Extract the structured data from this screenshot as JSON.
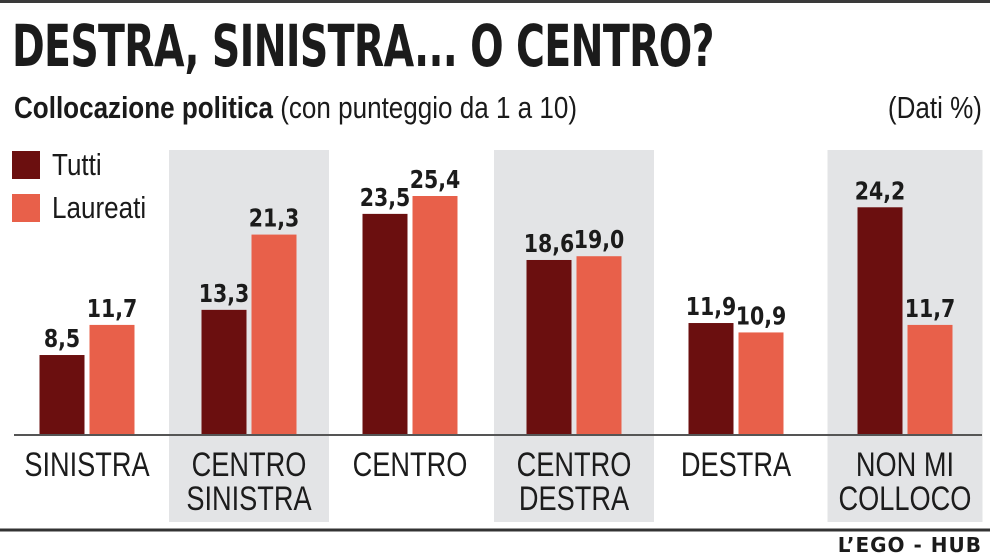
{
  "title": "DESTRA, SINISTRA... O CENTRO?",
  "subtitle_bold": "Collocazione politica",
  "subtitle_rest": " (con punteggio da 1 a 10)",
  "units_note": "(Dati %)",
  "source": "L’EGO - HUB",
  "colors": {
    "tutti": "#6b0f0f",
    "laureati": "#e8604a",
    "band": "#e3e4e6",
    "axis": "#555555",
    "text": "#1b1b1b"
  },
  "chart_data": {
    "type": "bar",
    "title": "DESTRA, SINISTRA... O CENTRO?",
    "xlabel": "",
    "ylabel": "",
    "ylim": [
      0,
      26
    ],
    "grid": false,
    "legend_position": "top-left",
    "categories": [
      [
        "SINISTRA"
      ],
      [
        "CENTRO",
        "SINISTRA"
      ],
      [
        "CENTRO"
      ],
      [
        "CENTRO",
        "DESTRA"
      ],
      [
        "DESTRA"
      ],
      [
        "NON MI",
        "COLLOCO"
      ]
    ],
    "shaded": [
      false,
      true,
      false,
      true,
      false,
      true
    ],
    "series": [
      {
        "name": "Tutti",
        "values": [
          8.5,
          13.3,
          23.5,
          18.6,
          11.9,
          24.2
        ],
        "labels": [
          "8,5",
          "13,3",
          "23,5",
          "18,6",
          "11,9",
          "24,2"
        ]
      },
      {
        "name": "Laureati",
        "values": [
          11.7,
          21.3,
          25.4,
          19.0,
          10.9,
          11.7
        ],
        "labels": [
          "11,7",
          "21,3",
          "25,4",
          "19,0",
          "10,9",
          "11,7"
        ]
      }
    ]
  }
}
